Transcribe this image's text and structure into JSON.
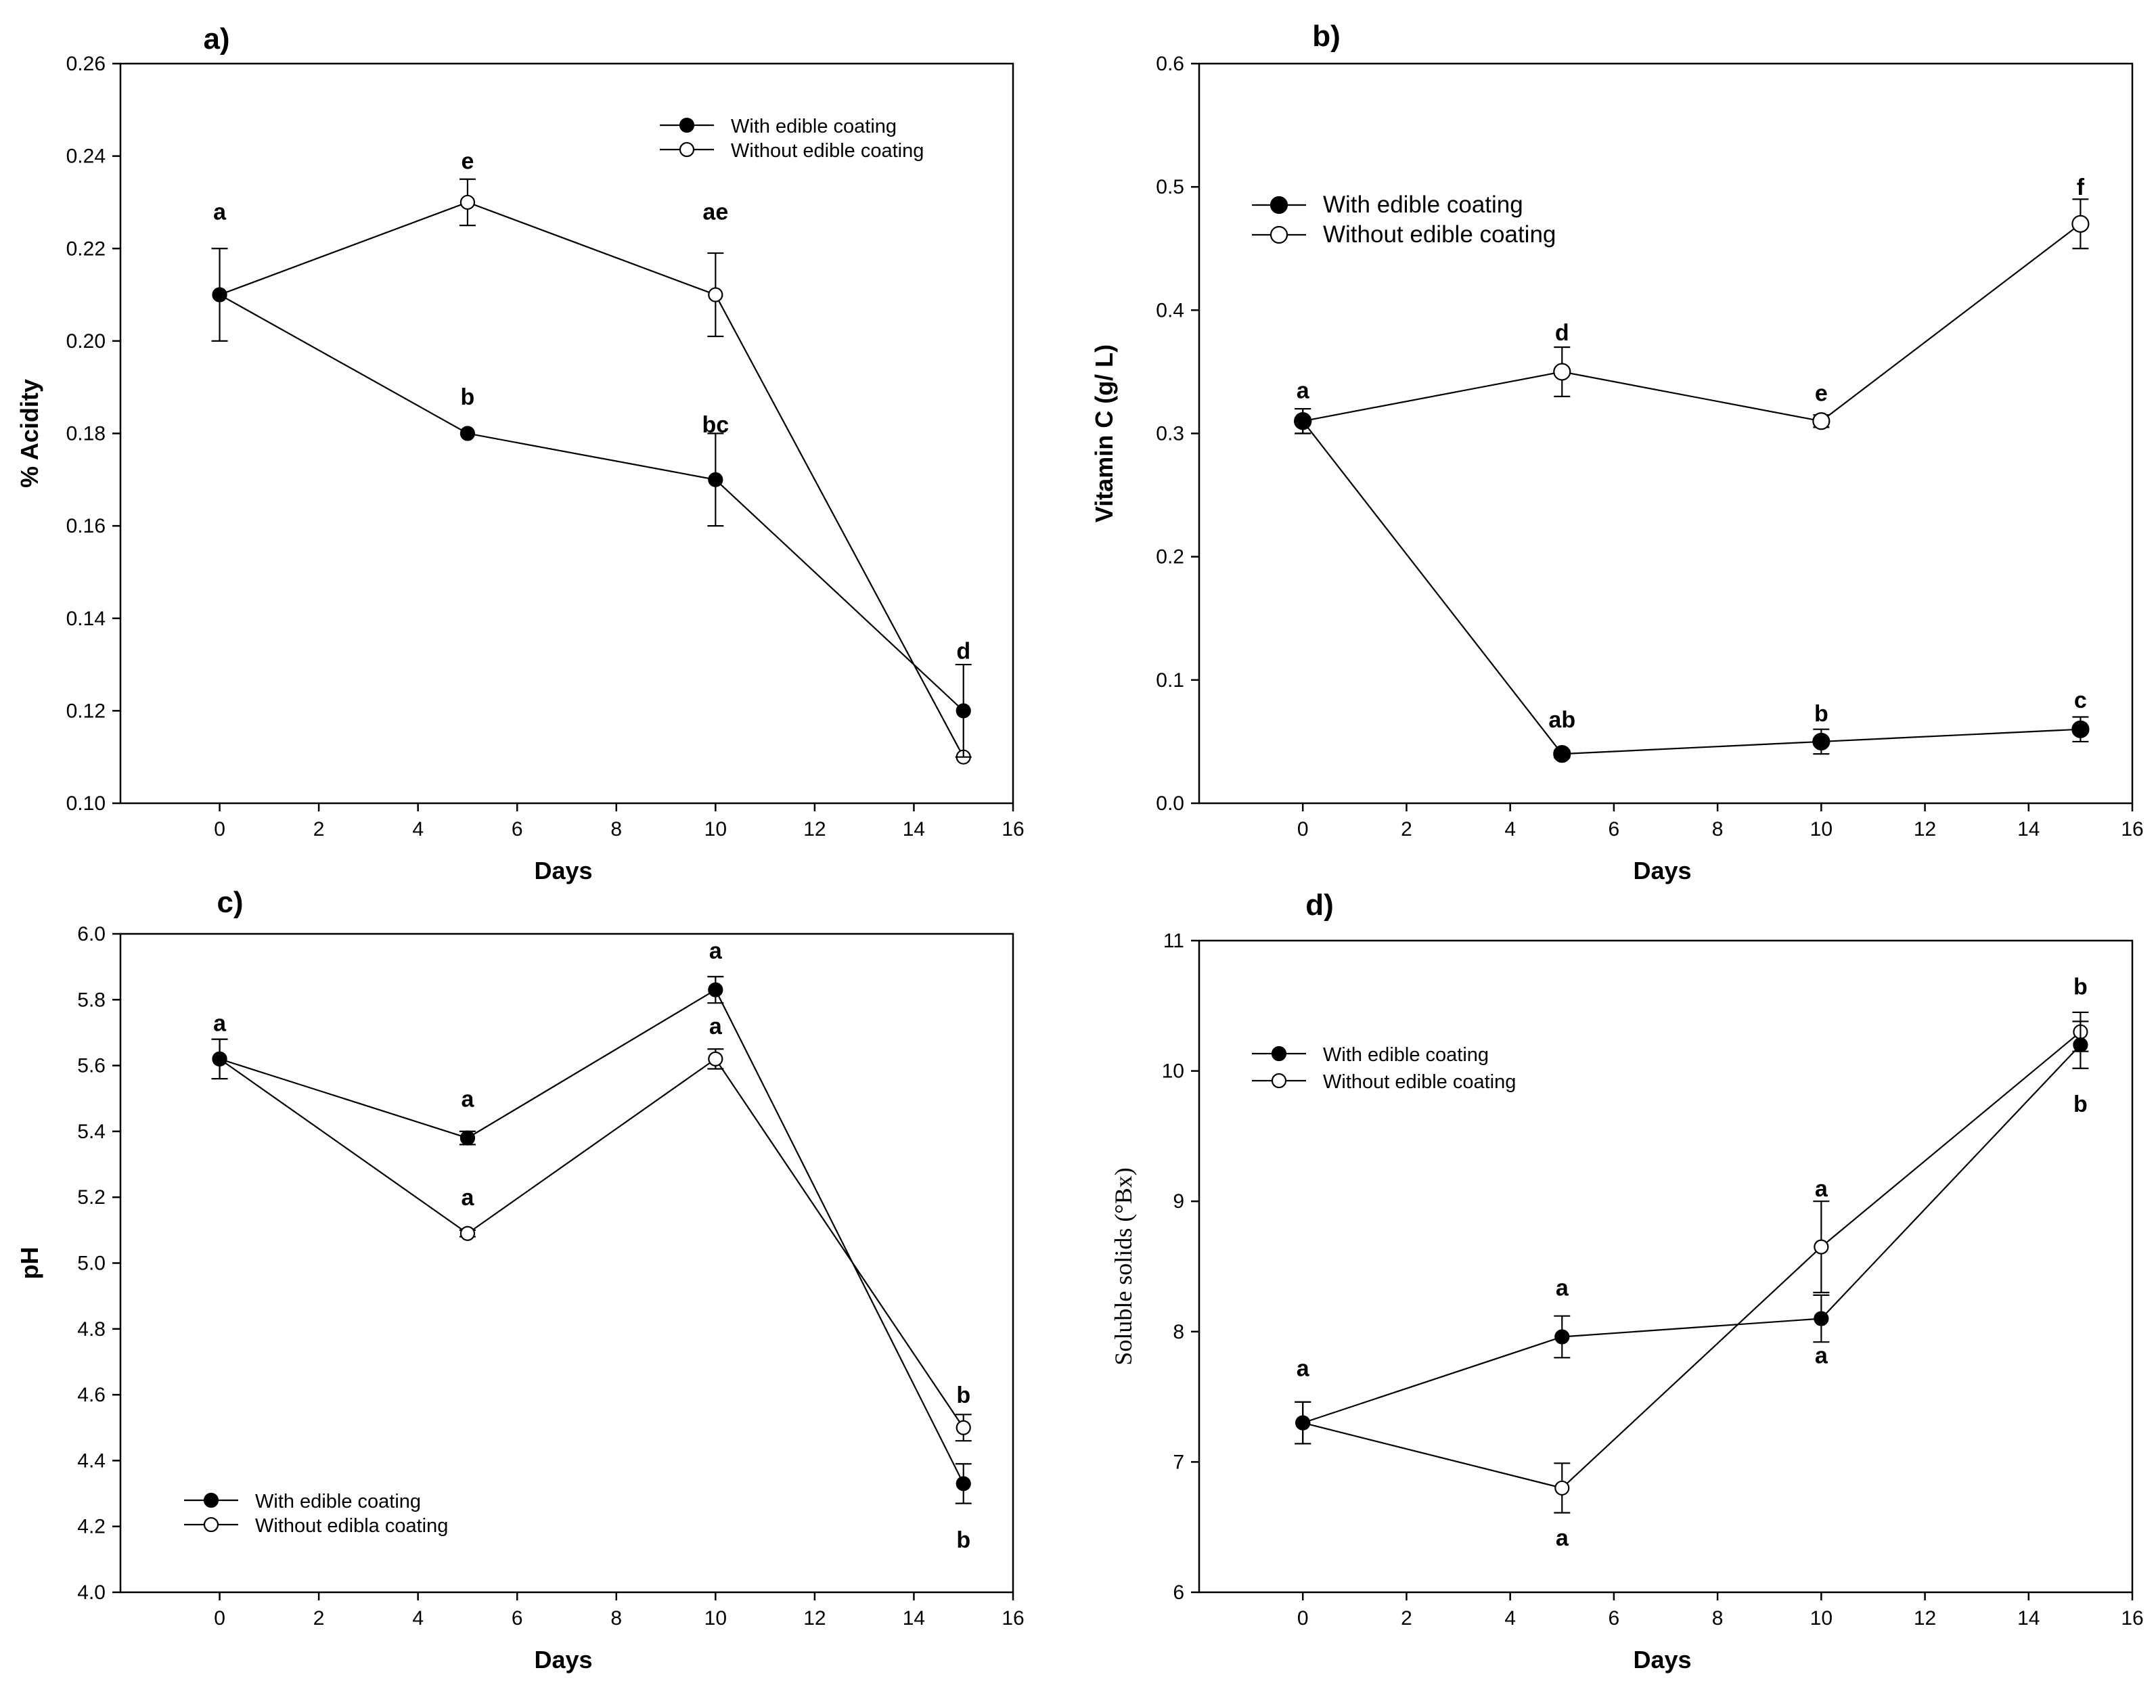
{
  "chart_data": [
    {
      "type": "line",
      "panel_label": "a)",
      "xlabel": "Days",
      "ylabel": "% Acidity",
      "xlim": [
        -2,
        16
      ],
      "ylim": [
        0.1,
        0.26
      ],
      "x_ticks": [
        0,
        2,
        4,
        6,
        8,
        10,
        12,
        14,
        16
      ],
      "y_ticks": [
        "0.10",
        "0.12",
        "0.14",
        "0.16",
        "0.18",
        "0.20",
        "0.22",
        "0.24",
        "0.26"
      ],
      "legend_position": "top-right",
      "series": [
        {
          "name": "With edible coating",
          "marker": "filled",
          "x": [
            0,
            5,
            10,
            15
          ],
          "y": [
            0.21,
            0.18,
            0.17,
            0.12
          ],
          "err": [
            0,
            0,
            0.01,
            0.01
          ]
        },
        {
          "name": "Without edible coating",
          "marker": "open",
          "x": [
            0,
            5,
            10,
            15
          ],
          "y": [
            0.21,
            0.23,
            0.21,
            0.11
          ],
          "err": [
            0.01,
            0.005,
            0.009,
            0
          ]
        }
      ],
      "annotations": [
        {
          "text": "a",
          "x": 0,
          "y": 0.228
        },
        {
          "text": "e",
          "x": 5,
          "y": 0.239
        },
        {
          "text": "ae",
          "x": 10,
          "y": 0.228
        },
        {
          "text": "b",
          "x": 5,
          "y": 0.188
        },
        {
          "text": "bc",
          "x": 10,
          "y": 0.182
        },
        {
          "text": "d",
          "x": 15,
          "y": 0.133
        }
      ]
    },
    {
      "type": "line",
      "panel_label": "b)",
      "xlabel": "Days",
      "ylabel": "Vitamin C (g/ L)",
      "xlim": [
        -2,
        16
      ],
      "ylim": [
        0.0,
        0.6
      ],
      "x_ticks": [
        0,
        2,
        4,
        6,
        8,
        10,
        12,
        14,
        16
      ],
      "y_ticks": [
        "0.0",
        "0.1",
        "0.2",
        "0.3",
        "0.4",
        "0.5",
        "0.6"
      ],
      "legend_position": "top-left",
      "series": [
        {
          "name": "With edible coating",
          "marker": "filled",
          "x": [
            0,
            5,
            10,
            15
          ],
          "y": [
            0.31,
            0.04,
            0.05,
            0.06
          ],
          "err": [
            0.01,
            0.003,
            0.01,
            0.01
          ]
        },
        {
          "name": "Without edible coating",
          "marker": "open",
          "x": [
            0,
            5,
            10,
            15
          ],
          "y": [
            0.31,
            0.35,
            0.31,
            0.47
          ],
          "err": [
            0.01,
            0.02,
            0.005,
            0.02
          ]
        }
      ],
      "annotations": [
        {
          "text": "a",
          "x": 0,
          "y": 0.335
        },
        {
          "text": "d",
          "x": 5,
          "y": 0.382
        },
        {
          "text": "e",
          "x": 10,
          "y": 0.333
        },
        {
          "text": "f",
          "x": 15,
          "y": 0.5
        },
        {
          "text": "ab",
          "x": 5,
          "y": 0.068
        },
        {
          "text": "b",
          "x": 10,
          "y": 0.073
        },
        {
          "text": "c",
          "x": 15,
          "y": 0.084
        }
      ]
    },
    {
      "type": "line",
      "panel_label": "c)",
      "xlabel": "Days",
      "ylabel": "pH",
      "xlim": [
        -2,
        16
      ],
      "ylim": [
        4.0,
        6.0
      ],
      "x_ticks": [
        0,
        2,
        4,
        6,
        8,
        10,
        12,
        14,
        16
      ],
      "y_ticks": [
        "4.0",
        "4.2",
        "4.4",
        "4.6",
        "4.8",
        "5.0",
        "5.2",
        "5.4",
        "5.6",
        "5.8",
        "6.0"
      ],
      "legend_position": "bottom-left",
      "series": [
        {
          "name": "With edible coating",
          "marker": "filled",
          "x": [
            0,
            5,
            10,
            15
          ],
          "y": [
            5.62,
            5.38,
            5.83,
            4.33
          ],
          "err": [
            0.06,
            0.02,
            0.04,
            0.06
          ]
        },
        {
          "name": "Without edibla coating",
          "marker": "open",
          "x": [
            0,
            5,
            10,
            15
          ],
          "y": [
            5.62,
            5.09,
            5.62,
            4.5
          ],
          "err": [
            0.06,
            0.01,
            0.03,
            0.04
          ]
        }
      ],
      "annotations": [
        {
          "text": "a",
          "x": 0,
          "y": 5.73
        },
        {
          "text": "a",
          "x": 5,
          "y": 5.5
        },
        {
          "text": "a",
          "x": 5,
          "y": 5.2
        },
        {
          "text": "a",
          "x": 10,
          "y": 5.95
        },
        {
          "text": "a",
          "x": 10,
          "y": 5.72
        },
        {
          "text": "b",
          "x": 15,
          "y": 4.6
        },
        {
          "text": "b",
          "x": 15,
          "y": 4.16
        }
      ]
    },
    {
      "type": "line",
      "panel_label": "d)",
      "xlabel": "Days",
      "ylabel": "Soluble solids (°Bx)",
      "xlim": [
        -2,
        16
      ],
      "ylim": [
        6,
        11
      ],
      "x_ticks": [
        0,
        2,
        4,
        6,
        8,
        10,
        12,
        14,
        16
      ],
      "y_ticks": [
        "6",
        "7",
        "8",
        "9",
        "10",
        "11"
      ],
      "legend_position": "top-left",
      "series": [
        {
          "name": "With edible coating",
          "marker": "filled",
          "x": [
            0,
            5,
            10,
            15
          ],
          "y": [
            7.3,
            7.96,
            8.1,
            10.2
          ],
          "err": [
            0.16,
            0.16,
            0.18,
            0.18
          ]
        },
        {
          "name": "Without edible coating",
          "marker": "open",
          "x": [
            0,
            5,
            10,
            15
          ],
          "y": [
            7.3,
            6.8,
            8.65,
            10.3
          ],
          "err": [
            0.16,
            0.19,
            0.35,
            0.15
          ]
        }
      ],
      "annotations": [
        {
          "text": "a",
          "x": 0,
          "y": 7.72
        },
        {
          "text": "a",
          "x": 5,
          "y": 8.34
        },
        {
          "text": "a",
          "x": 5,
          "y": 6.42
        },
        {
          "text": "a",
          "x": 10,
          "y": 9.1
        },
        {
          "text": "a",
          "x": 10,
          "y": 7.82
        },
        {
          "text": "b",
          "x": 15,
          "y": 10.65
        },
        {
          "text": "b",
          "x": 15,
          "y": 9.75
        }
      ]
    }
  ]
}
